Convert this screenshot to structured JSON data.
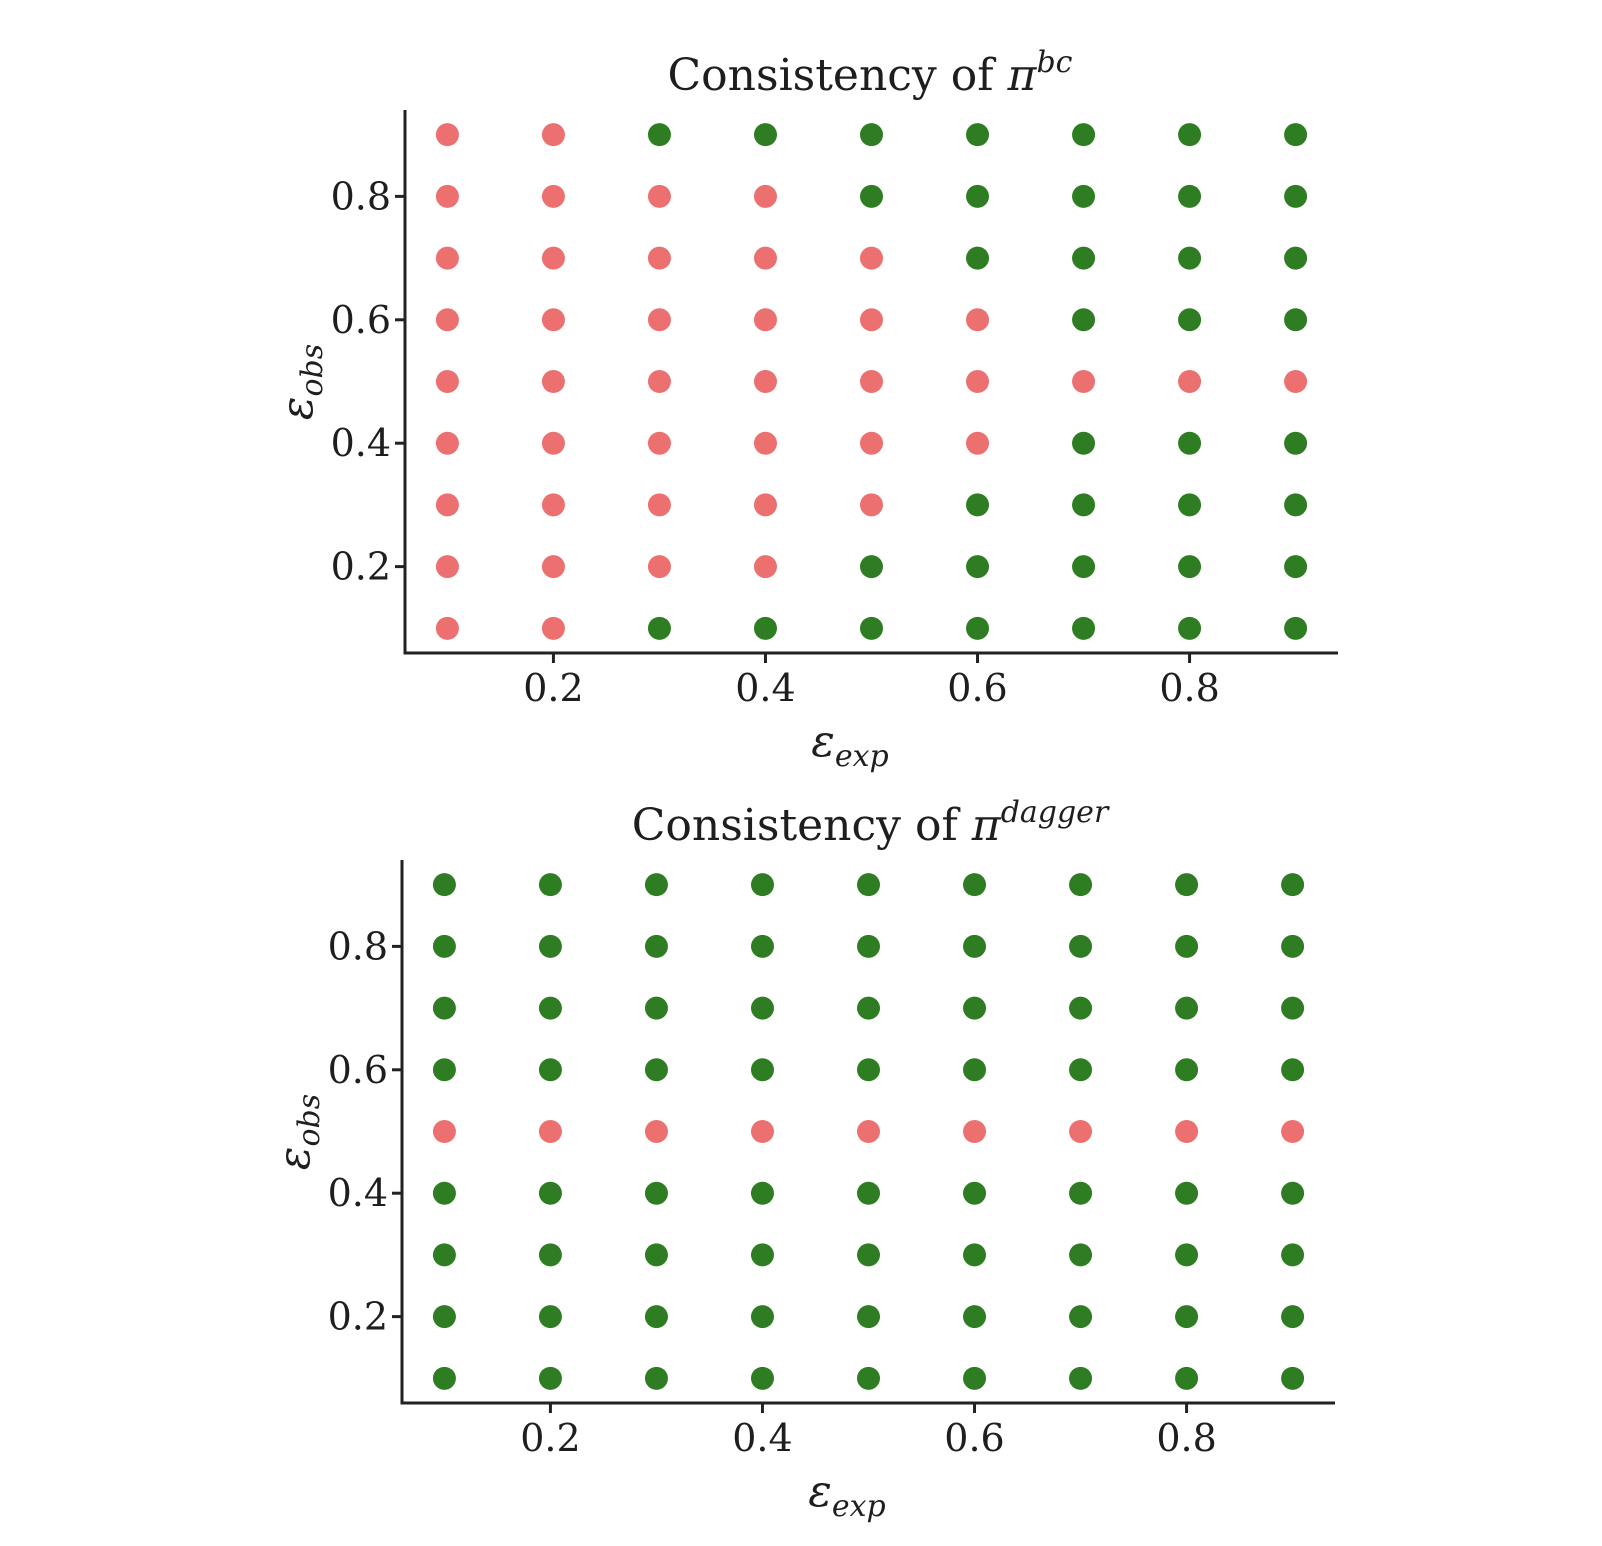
{
  "colors": {
    "consistent": "#2e7d22",
    "inconsistent": "#ec7070"
  },
  "chart_data": [
    {
      "type": "scatter",
      "title": {
        "prefix": "Consistency of ",
        "symbol": "π",
        "superscript": "bc"
      },
      "xlabel": {
        "symbol": "ε",
        "subscript": "exp"
      },
      "ylabel": {
        "symbol": "ε",
        "subscript": "obs"
      },
      "xticks": [
        "0.2",
        "0.4",
        "0.6",
        "0.8"
      ],
      "yticks": [
        "0.2",
        "0.4",
        "0.6",
        "0.8"
      ],
      "xlim": [
        0.06,
        0.94
      ],
      "ylim": [
        0.06,
        0.94
      ],
      "grid": false,
      "x": [
        0.1,
        0.2,
        0.3,
        0.4,
        0.5,
        0.6,
        0.7,
        0.8,
        0.9
      ],
      "y": [
        0.1,
        0.2,
        0.3,
        0.4,
        0.5,
        0.6,
        0.7,
        0.8,
        0.9
      ],
      "consistent": [
        [
          0,
          0,
          1,
          1,
          1,
          1,
          1,
          1,
          1
        ],
        [
          0,
          0,
          0,
          0,
          1,
          1,
          1,
          1,
          1
        ],
        [
          0,
          0,
          0,
          0,
          0,
          1,
          1,
          1,
          1
        ],
        [
          0,
          0,
          0,
          0,
          0,
          0,
          1,
          1,
          1
        ],
        [
          0,
          0,
          0,
          0,
          0,
          0,
          0,
          0,
          0
        ],
        [
          0,
          0,
          0,
          0,
          0,
          0,
          1,
          1,
          1
        ],
        [
          0,
          0,
          0,
          0,
          0,
          1,
          1,
          1,
          1
        ],
        [
          0,
          0,
          0,
          0,
          1,
          1,
          1,
          1,
          1
        ],
        [
          0,
          0,
          1,
          1,
          1,
          1,
          1,
          1,
          1
        ]
      ]
    },
    {
      "type": "scatter",
      "title": {
        "prefix": "Consistency of ",
        "symbol": "π",
        "superscript": "dagger"
      },
      "xlabel": {
        "symbol": "ε",
        "subscript": "exp"
      },
      "ylabel": {
        "symbol": "ε",
        "subscript": "obs"
      },
      "xticks": [
        "0.2",
        "0.4",
        "0.6",
        "0.8"
      ],
      "yticks": [
        "0.2",
        "0.4",
        "0.6",
        "0.8"
      ],
      "xlim": [
        0.06,
        0.94
      ],
      "ylim": [
        0.06,
        0.94
      ],
      "grid": false,
      "x": [
        0.1,
        0.2,
        0.3,
        0.4,
        0.5,
        0.6,
        0.7,
        0.8,
        0.9
      ],
      "y": [
        0.1,
        0.2,
        0.3,
        0.4,
        0.5,
        0.6,
        0.7,
        0.8,
        0.9
      ],
      "consistent": [
        [
          1,
          1,
          1,
          1,
          1,
          1,
          1,
          1,
          1
        ],
        [
          1,
          1,
          1,
          1,
          1,
          1,
          1,
          1,
          1
        ],
        [
          1,
          1,
          1,
          1,
          1,
          1,
          1,
          1,
          1
        ],
        [
          1,
          1,
          1,
          1,
          1,
          1,
          1,
          1,
          1
        ],
        [
          0,
          0,
          0,
          0,
          0,
          0,
          0,
          0,
          0
        ],
        [
          1,
          1,
          1,
          1,
          1,
          1,
          1,
          1,
          1
        ],
        [
          1,
          1,
          1,
          1,
          1,
          1,
          1,
          1,
          1
        ],
        [
          1,
          1,
          1,
          1,
          1,
          1,
          1,
          1,
          1
        ],
        [
          1,
          1,
          1,
          1,
          1,
          1,
          1,
          1,
          1
        ]
      ]
    }
  ]
}
